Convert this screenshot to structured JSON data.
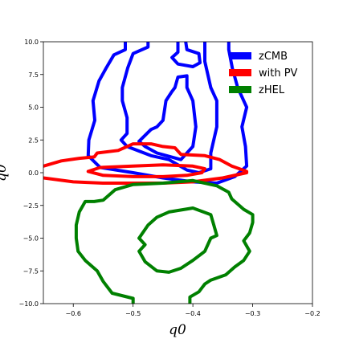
{
  "chart_data": {
    "type": "contour",
    "xlabel": "q0",
    "ylabel": "q0",
    "xlim": [
      -0.65,
      -0.2
    ],
    "ylim": [
      -10.0,
      10.0
    ],
    "xticks": [
      -0.6,
      -0.5,
      -0.4,
      -0.3,
      -0.2
    ],
    "xtick_labels": [
      "−0.6",
      "−0.5",
      "−0.4",
      "−0.3",
      "−0.2"
    ],
    "yticks": [
      -10.0,
      -7.5,
      -5.0,
      -2.5,
      0.0,
      2.5,
      5.0,
      7.5,
      10.0
    ],
    "ytick_labels": [
      "−10.0",
      "−7.5",
      "−5.0",
      "−2.5",
      "0.0",
      "2.5",
      "5.0",
      "7.5",
      "10.0"
    ],
    "legend_position": "top-right",
    "grid": false,
    "series": [
      {
        "name": "zCMB",
        "color": "#0000ff",
        "contours": [
          [
            [
              -0.513,
              10.0
            ],
            [
              -0.513,
              9.4
            ],
            [
              -0.532,
              9.0
            ],
            [
              -0.545,
              8.0
            ],
            [
              -0.557,
              7.0
            ],
            [
              -0.567,
              5.5
            ],
            [
              -0.564,
              4.0
            ],
            [
              -0.574,
              2.5
            ],
            [
              -0.575,
              1.3
            ],
            [
              -0.555,
              0.4
            ],
            [
              -0.5,
              0.0
            ],
            [
              -0.45,
              -0.4
            ],
            [
              -0.4,
              -0.7
            ],
            [
              -0.36,
              -0.8
            ],
            [
              -0.33,
              -0.3
            ],
            [
              -0.31,
              0.5
            ],
            [
              -0.312,
              2.0
            ],
            [
              -0.318,
              3.5
            ],
            [
              -0.31,
              5.0
            ],
            [
              -0.325,
              6.5
            ],
            [
              -0.334,
              8.0
            ],
            [
              -0.34,
              9.4
            ],
            [
              -0.34,
              10.0
            ]
          ],
          [
            [
              -0.475,
              10.0
            ],
            [
              -0.475,
              9.6
            ],
            [
              -0.5,
              9.1
            ],
            [
              -0.509,
              8.0
            ],
            [
              -0.518,
              6.5
            ],
            [
              -0.518,
              5.5
            ],
            [
              -0.51,
              4.2
            ],
            [
              -0.51,
              3.0
            ],
            [
              -0.52,
              2.5
            ],
            [
              -0.51,
              2.0
            ],
            [
              -0.47,
              1.3
            ],
            [
              -0.44,
              1.0
            ],
            [
              -0.41,
              0.2
            ],
            [
              -0.39,
              0.0
            ],
            [
              -0.37,
              0.3
            ],
            [
              -0.37,
              1.5
            ],
            [
              -0.36,
              3.5
            ],
            [
              -0.36,
              5.5
            ],
            [
              -0.37,
              6.5
            ],
            [
              -0.38,
              8.5
            ],
            [
              -0.38,
              9.5
            ],
            [
              -0.38,
              10.0
            ]
          ],
          [
            [
              -0.425,
              10.0
            ],
            [
              -0.425,
              9.2
            ],
            [
              -0.435,
              8.8
            ],
            [
              -0.425,
              8.3
            ],
            [
              -0.4,
              8.1
            ],
            [
              -0.388,
              8.4
            ],
            [
              -0.39,
              9.1
            ],
            [
              -0.41,
              9.4
            ],
            [
              -0.412,
              10.0
            ]
          ],
          [
            [
              -0.49,
              2.4
            ],
            [
              -0.47,
              3.3
            ],
            [
              -0.46,
              3.5
            ],
            [
              -0.45,
              4.0
            ],
            [
              -0.445,
              5.5
            ],
            [
              -0.435,
              6.2
            ],
            [
              -0.43,
              6.5
            ],
            [
              -0.425,
              7.3
            ],
            [
              -0.41,
              7.4
            ],
            [
              -0.41,
              6.5
            ],
            [
              -0.4,
              5.5
            ],
            [
              -0.395,
              3.5
            ],
            [
              -0.4,
              2.0
            ],
            [
              -0.42,
              1.0
            ],
            [
              -0.46,
              1.5
            ],
            [
              -0.48,
              2.0
            ],
            [
              -0.49,
              2.4
            ]
          ]
        ]
      },
      {
        "name": "with PV",
        "color": "#ff0000",
        "contours": [
          [
            [
              -0.65,
              0.5
            ],
            [
              -0.62,
              0.9
            ],
            [
              -0.59,
              1.1
            ],
            [
              -0.565,
              1.2
            ],
            [
              -0.56,
              1.5
            ],
            [
              -0.525,
              1.7
            ],
            [
              -0.51,
              2.0
            ],
            [
              -0.5,
              2.2
            ],
            [
              -0.47,
              2.2
            ],
            [
              -0.45,
              2.0
            ],
            [
              -0.43,
              1.9
            ],
            [
              -0.42,
              1.4
            ],
            [
              -0.38,
              1.3
            ],
            [
              -0.355,
              1.0
            ],
            [
              -0.335,
              0.5
            ],
            [
              -0.31,
              0.1
            ],
            [
              -0.31,
              0.0
            ],
            [
              -0.35,
              -0.4
            ],
            [
              -0.4,
              -0.7
            ],
            [
              -0.45,
              -0.8
            ],
            [
              -0.5,
              -0.8
            ],
            [
              -0.55,
              -0.8
            ],
            [
              -0.6,
              -0.7
            ],
            [
              -0.65,
              -0.4
            ]
          ],
          [
            [
              -0.575,
              0.1
            ],
            [
              -0.555,
              0.4
            ],
            [
              -0.5,
              0.5
            ],
            [
              -0.45,
              0.6
            ],
            [
              -0.4,
              0.5
            ],
            [
              -0.38,
              0.3
            ],
            [
              -0.385,
              0.0
            ],
            [
              -0.41,
              -0.2
            ],
            [
              -0.45,
              -0.3
            ],
            [
              -0.5,
              -0.3
            ],
            [
              -0.55,
              -0.2
            ],
            [
              -0.575,
              0.1
            ]
          ]
        ]
      },
      {
        "name": "zHEL",
        "color": "#008000",
        "contours": [
          [
            [
              -0.405,
              -10.0
            ],
            [
              -0.405,
              -9.5
            ],
            [
              -0.39,
              -9.1
            ],
            [
              -0.38,
              -8.5
            ],
            [
              -0.37,
              -8.2
            ],
            [
              -0.345,
              -7.8
            ],
            [
              -0.33,
              -7.2
            ],
            [
              -0.315,
              -6.7
            ],
            [
              -0.305,
              -6.0
            ],
            [
              -0.315,
              -5.2
            ],
            [
              -0.305,
              -4.6
            ],
            [
              -0.3,
              -3.8
            ],
            [
              -0.3,
              -3.2
            ],
            [
              -0.315,
              -2.8
            ],
            [
              -0.335,
              -2.0
            ],
            [
              -0.34,
              -1.5
            ],
            [
              -0.36,
              -1.0
            ],
            [
              -0.4,
              -0.6
            ],
            [
              -0.45,
              -0.8
            ],
            [
              -0.5,
              -0.9
            ],
            [
              -0.53,
              -1.3
            ],
            [
              -0.55,
              -2.1
            ],
            [
              -0.565,
              -2.2
            ],
            [
              -0.58,
              -2.2
            ],
            [
              -0.59,
              -3.0
            ],
            [
              -0.595,
              -4.0
            ],
            [
              -0.595,
              -5.0
            ],
            [
              -0.592,
              -6.0
            ],
            [
              -0.58,
              -6.7
            ],
            [
              -0.56,
              -7.5
            ],
            [
              -0.55,
              -8.3
            ],
            [
              -0.535,
              -9.2
            ],
            [
              -0.5,
              -9.6
            ],
            [
              -0.5,
              -10.0
            ]
          ],
          [
            [
              -0.49,
              -5.0
            ],
            [
              -0.475,
              -4.0
            ],
            [
              -0.46,
              -3.4
            ],
            [
              -0.44,
              -3.0
            ],
            [
              -0.4,
              -2.7
            ],
            [
              -0.37,
              -3.2
            ],
            [
              -0.365,
              -4.0
            ],
            [
              -0.36,
              -4.8
            ],
            [
              -0.37,
              -5.0
            ],
            [
              -0.38,
              -6.0
            ],
            [
              -0.4,
              -6.7
            ],
            [
              -0.42,
              -7.3
            ],
            [
              -0.44,
              -7.6
            ],
            [
              -0.46,
              -7.5
            ],
            [
              -0.48,
              -6.8
            ],
            [
              -0.49,
              -6.0
            ],
            [
              -0.48,
              -5.5
            ],
            [
              -0.49,
              -5.0
            ]
          ]
        ]
      }
    ]
  }
}
